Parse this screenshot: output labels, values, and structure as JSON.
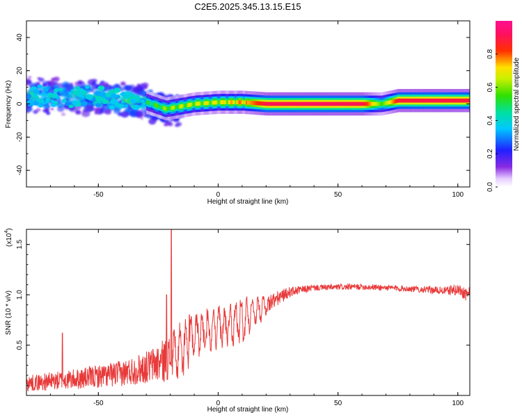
{
  "title": "C2E5.2025.345.13.15.E15",
  "chart_data": [
    {
      "type": "heatmap",
      "name": "spectrogram",
      "xlabel": "Height of straight line (km)",
      "ylabel": "Frequency (Hz)",
      "xlim": [
        -80,
        105
      ],
      "ylim": [
        -50,
        50
      ],
      "xticks": [
        -50,
        0,
        50,
        100
      ],
      "yticks": [
        -40,
        -20,
        0,
        20,
        40
      ],
      "xtick_labels": [
        "-50",
        "0",
        "50",
        "100"
      ],
      "ytick_labels": [
        "-40",
        "-20",
        "0",
        "20",
        "40"
      ],
      "colorbar": {
        "label": "Normalized spectral amplitude",
        "range": [
          0,
          1
        ],
        "ticks": [
          0.0,
          0.2,
          0.4,
          0.6,
          0.8
        ],
        "tick_labels": [
          "0.0",
          "0.2",
          "0.4",
          "0.6",
          "0.8"
        ],
        "colormap": "rainbow (white-purple-blue-cyan-green-yellow-red-magenta)"
      },
      "description_values": {
        "scatter_region_x": [
          -80,
          -20
        ],
        "scatter_region_freq": [
          -15,
          15
        ],
        "band_center_freq_profile": {
          "x": [
            -80,
            -50,
            -30,
            -22,
            -10,
            0,
            10,
            20,
            40,
            60,
            68,
            75,
            90,
            105
          ],
          "freq": [
            5,
            4,
            1,
            -3,
            0,
            1,
            1,
            0,
            0,
            0,
            0,
            2,
            2,
            2
          ]
        },
        "band_amplitude_profile": {
          "x": [
            -80,
            -50,
            -30,
            -22,
            -10,
            0,
            10,
            20,
            40,
            60,
            68,
            75,
            90,
            105
          ],
          "amp": [
            0.35,
            0.35,
            0.45,
            0.55,
            0.6,
            0.62,
            0.7,
            0.9,
            0.92,
            0.9,
            0.55,
            0.88,
            0.9,
            0.88
          ]
        }
      }
    },
    {
      "type": "line",
      "name": "snr",
      "xlabel": "Height of straight line (km)",
      "ylabel": "SNR (10 * v/v)",
      "y_multiplier": "(x10",
      "y_multiplier_exp": "4",
      "xlim": [
        -80,
        105
      ],
      "ylim": [
        0,
        1.65
      ],
      "xticks": [
        -50,
        0,
        50,
        100
      ],
      "yticks": [
        0.5,
        1.0,
        1.5
      ],
      "xtick_labels": [
        "-50",
        "0",
        "50",
        "100"
      ],
      "ytick_labels": [
        "0.5",
        "1.0",
        "1.5"
      ],
      "color": "#e83a3a",
      "series": [
        {
          "name": "SNR",
          "trend_x": [
            -80,
            -60,
            -40,
            -30,
            -22,
            -15,
            -10,
            0,
            10,
            20,
            30,
            40,
            60,
            80,
            95,
            100,
            105
          ],
          "trend_y": [
            0.12,
            0.16,
            0.22,
            0.28,
            0.35,
            0.45,
            0.6,
            0.68,
            0.75,
            0.9,
            1.03,
            1.07,
            1.08,
            1.06,
            1.04,
            1.05,
            1.0
          ],
          "noise_amplitude": [
            0.08,
            0.1,
            0.13,
            0.16,
            0.22,
            0.25,
            0.22,
            0.2,
            0.2,
            0.1,
            0.05,
            0.03,
            0.03,
            0.03,
            0.04,
            0.06,
            0.08
          ],
          "spikes": [
            {
              "x": -65,
              "y": 0.62
            },
            {
              "x": -21.5,
              "y": 1.0
            },
            {
              "x": -19.5,
              "y": 1.65
            },
            {
              "x": -12,
              "y": 0.8
            }
          ]
        }
      ]
    }
  ]
}
